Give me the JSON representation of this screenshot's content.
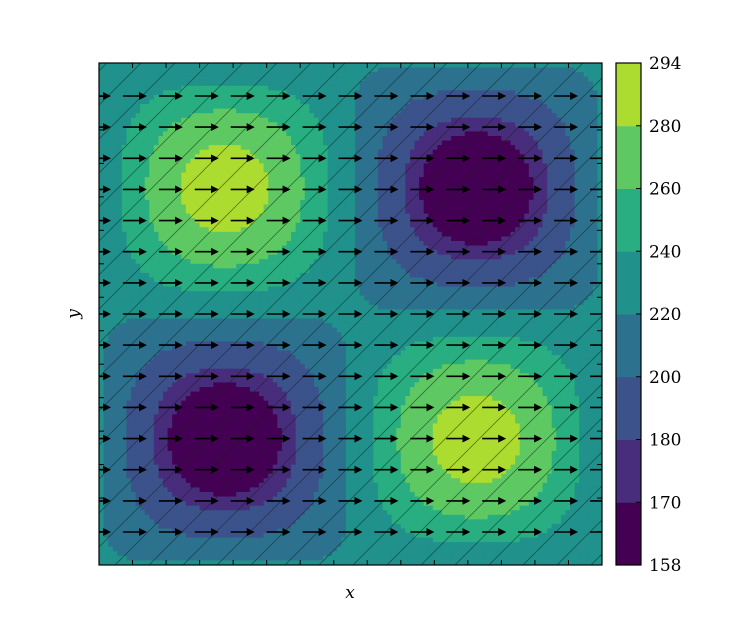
{
  "chart_data": {
    "type": "contour",
    "title": "",
    "xlabel": "x",
    "ylabel": "y",
    "xticks_labeled": false,
    "yticks_labeled": false,
    "grid": false,
    "field_description": "sinusoidal field with high lobes top-left and bottom-right, low lobes top-right and bottom-left",
    "field": {
      "mean": 222,
      "amplitude": 68,
      "peaks": [
        {
          "position": "top-left",
          "value": 290
        },
        {
          "position": "top-right",
          "value": 158
        },
        {
          "position": "bottom-left",
          "value": 158
        },
        {
          "position": "bottom-right",
          "value": 290
        }
      ]
    },
    "overlay": {
      "hatch": "diagonal",
      "quiver": {
        "direction": "right",
        "rows": 15,
        "cols": 15
      }
    },
    "colorbar": {
      "levels": [
        158,
        170,
        180,
        200,
        220,
        240,
        260,
        280,
        294
      ],
      "tick_labels": [
        "158",
        "170",
        "180",
        "200",
        "220",
        "240",
        "260",
        "280",
        "294"
      ],
      "colors": [
        "#440154",
        "#472d7b",
        "#3b528b",
        "#2c728e",
        "#21918c",
        "#28ae80",
        "#5ec962",
        "#addc30",
        "#fde725"
      ],
      "position": "right"
    }
  }
}
